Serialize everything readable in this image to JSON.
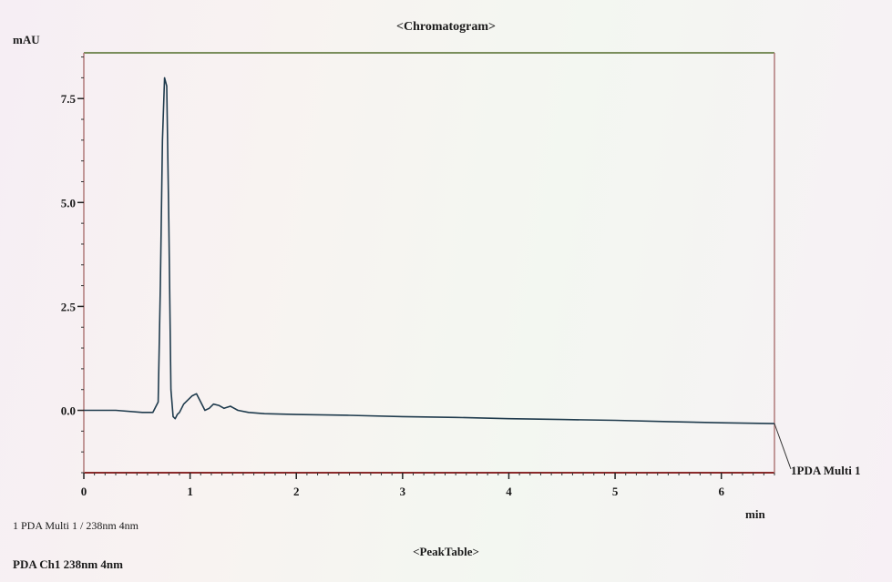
{
  "header": {
    "title": "<Chromatogram>"
  },
  "axis": {
    "y_unit": "mAU",
    "x_unit": "min"
  },
  "footer": {
    "legend": "1   PDA Multi 1 / 238nm 4nm",
    "peak_table_title": "<PeakTable>",
    "channel": "PDA Ch1 238nm 4nm"
  },
  "colors": {
    "trace": "#1f3b4d",
    "frame_top": "#7a8e5c",
    "frame_bottom": "#8a2a2a",
    "frame_side": "#b07a7a"
  },
  "chart_data": {
    "type": "line",
    "title": "<Chromatogram>",
    "ylabel": "mAU",
    "xlabel": "min",
    "xlim": [
      0,
      6.5
    ],
    "ylim": [
      -1.5,
      8.6
    ],
    "x_ticks": [
      0,
      1,
      2,
      3,
      4,
      5,
      6
    ],
    "x_tick_labels": [
      "0",
      "1",
      "2",
      "3",
      "4",
      "5",
      "6"
    ],
    "y_ticks": [
      0.0,
      2.5,
      5.0,
      7.5
    ],
    "y_tick_labels": [
      "0.0",
      "2.5",
      "5.0",
      "7.5"
    ],
    "grid": false,
    "series": [
      {
        "name": "PDA Multi 1",
        "end_label": "1PDA Multi 1",
        "x": [
          0,
          0.3,
          0.55,
          0.65,
          0.7,
          0.72,
          0.74,
          0.76,
          0.78,
          0.8,
          0.82,
          0.84,
          0.86,
          0.88,
          0.9,
          0.94,
          0.98,
          1.02,
          1.06,
          1.1,
          1.14,
          1.18,
          1.22,
          1.27,
          1.32,
          1.38,
          1.45,
          1.55,
          1.7,
          2.0,
          2.5,
          3.0,
          3.5,
          4.0,
          4.5,
          5.0,
          5.5,
          6.0,
          6.5
        ],
        "y": [
          0.0,
          0.0,
          -0.05,
          -0.05,
          0.2,
          3.0,
          6.5,
          8.0,
          7.8,
          4.5,
          0.5,
          -0.15,
          -0.2,
          -0.1,
          -0.05,
          0.15,
          0.25,
          0.35,
          0.4,
          0.2,
          0.0,
          0.05,
          0.15,
          0.12,
          0.05,
          0.1,
          0.0,
          -0.05,
          -0.08,
          -0.1,
          -0.12,
          -0.15,
          -0.17,
          -0.2,
          -0.22,
          -0.24,
          -0.27,
          -0.3,
          -0.32
        ]
      }
    ]
  }
}
